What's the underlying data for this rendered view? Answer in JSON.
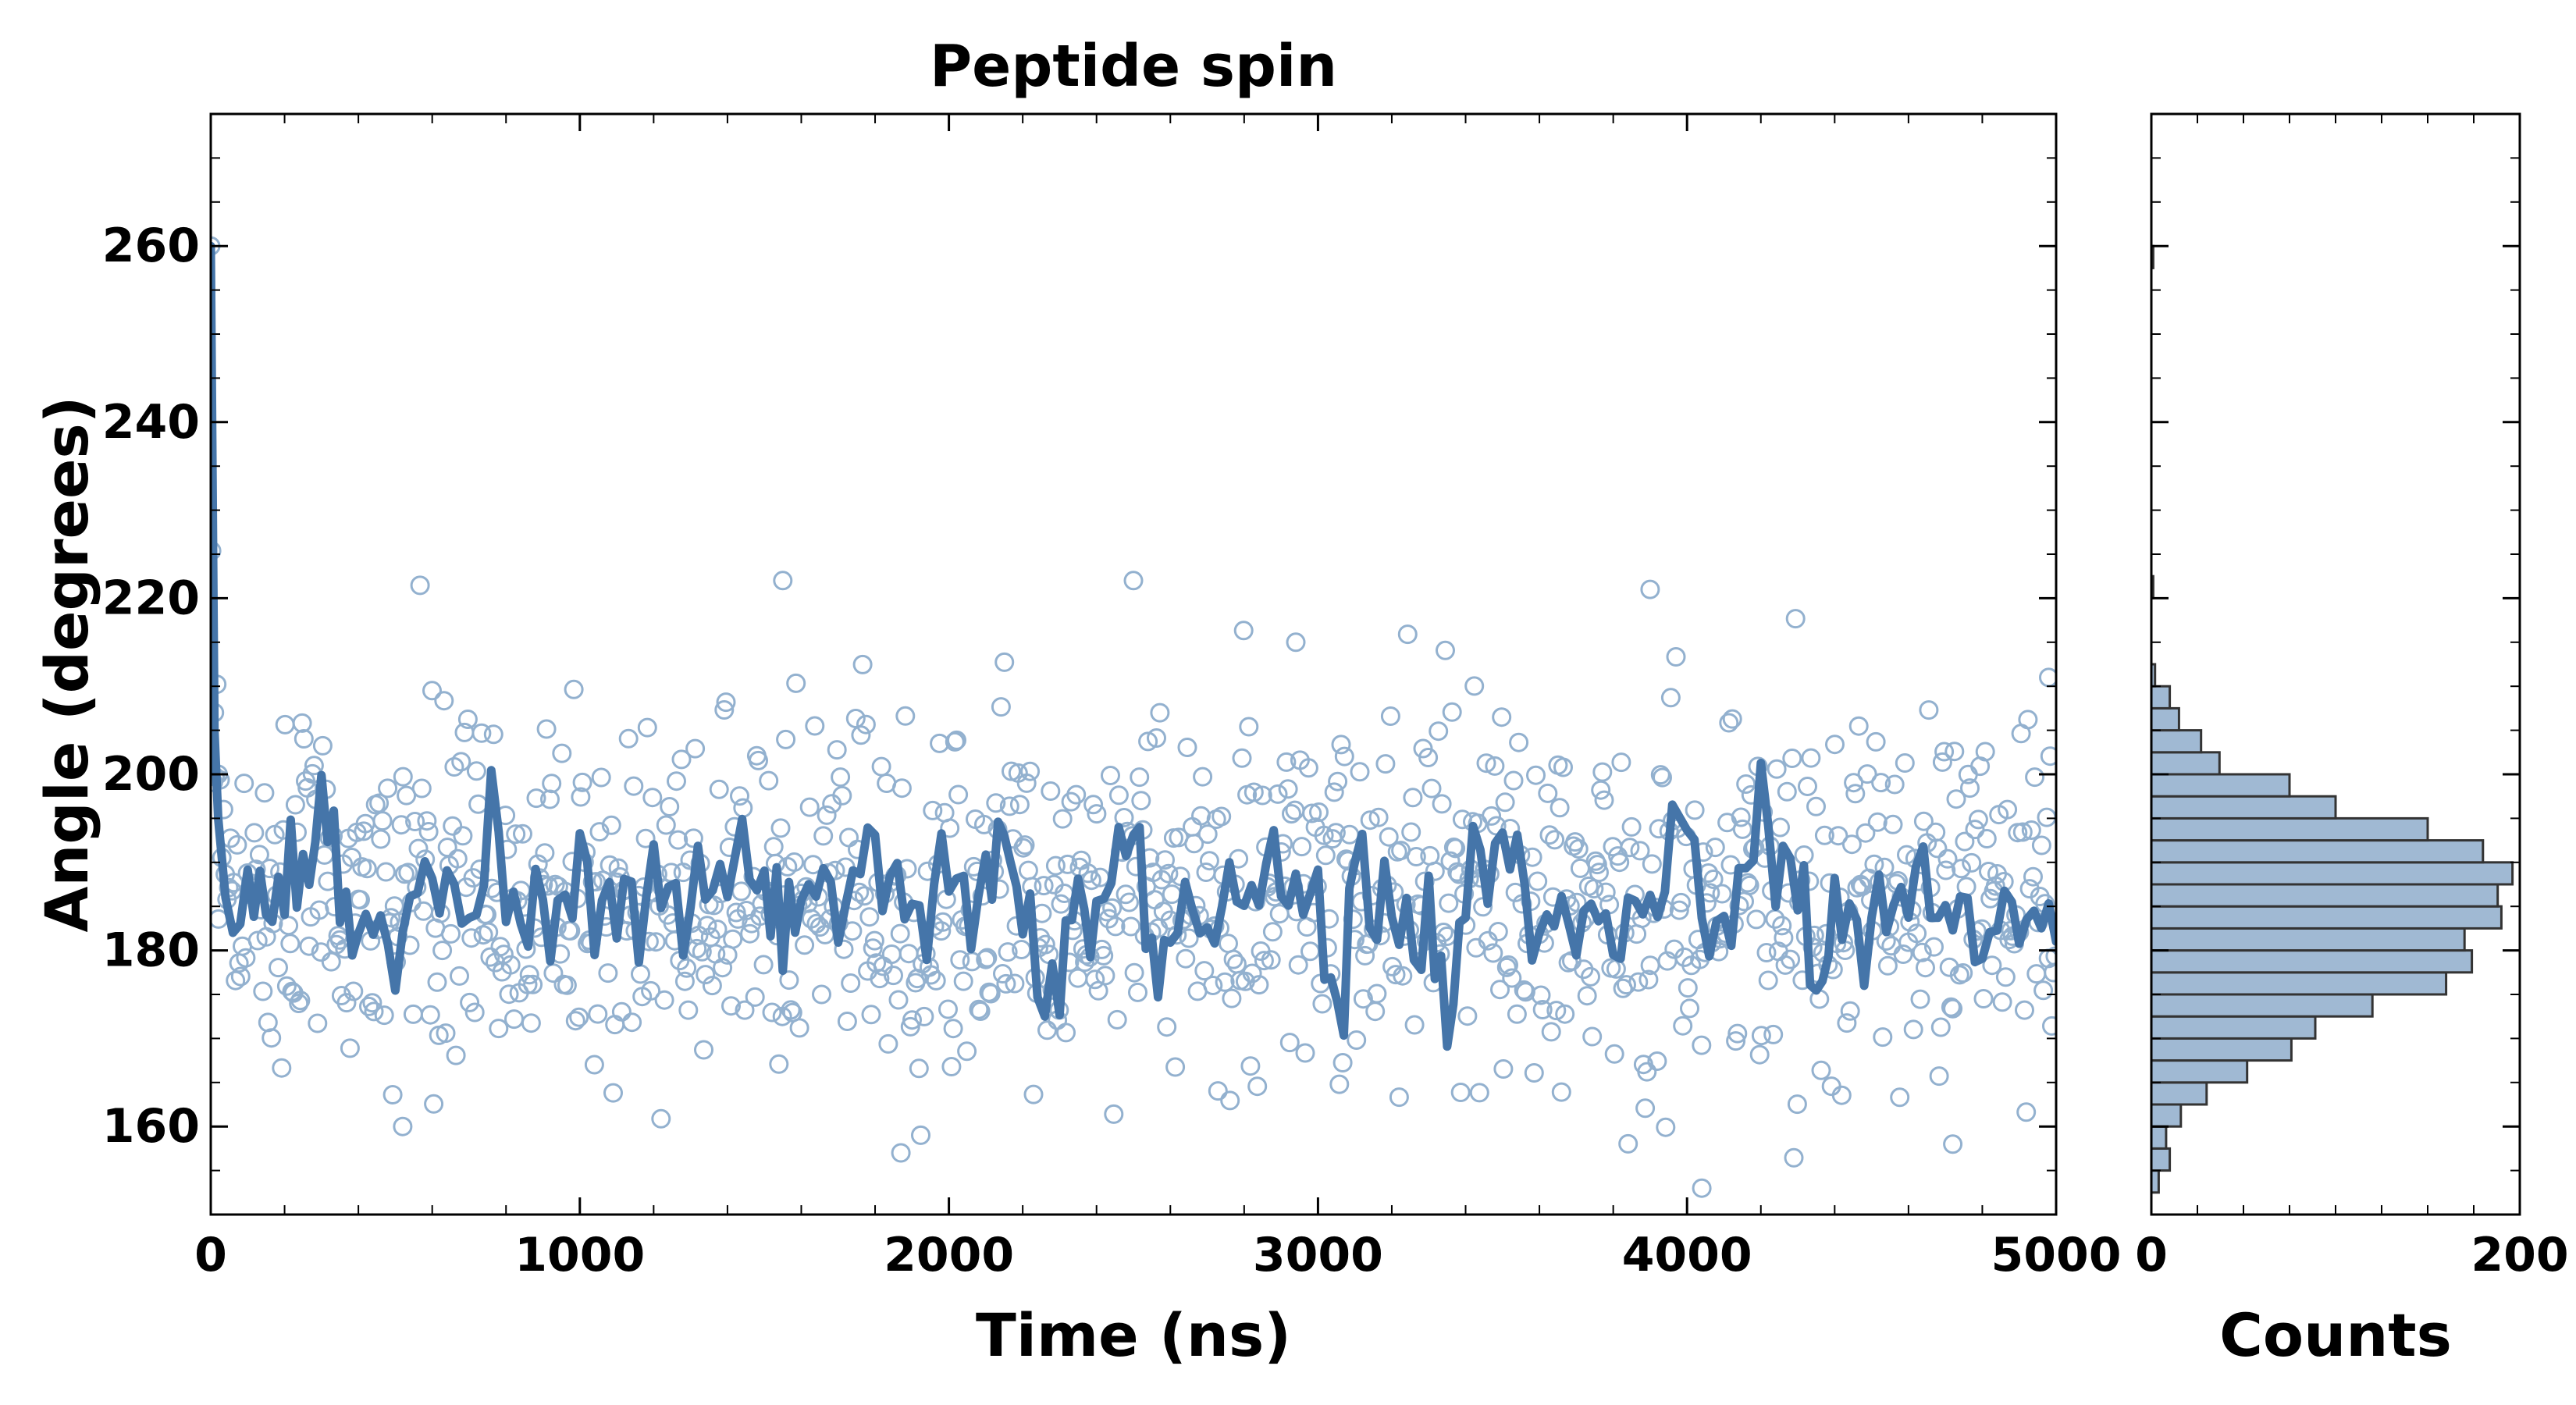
{
  "chart_data": [
    {
      "type": "scatter",
      "title": "Peptide spin",
      "xlabel": "Time (ns)",
      "ylabel": "Angle (degrees)",
      "xlim": [
        0,
        5000
      ],
      "ylim": [
        150,
        275
      ],
      "xticks": [
        0,
        1000,
        2000,
        3000,
        4000,
        5000
      ],
      "yticks": [
        160,
        180,
        200,
        220,
        240,
        260
      ],
      "grid": false,
      "colors": {
        "series": "#4575a9",
        "markers": "#93b1cf"
      },
      "series": [
        {
          "kind": "markers",
          "marker": "open-circle",
          "x_start": 0,
          "x_end": 5000,
          "count": 1080,
          "y_mean": 186,
          "y_std": 10,
          "samples": [
            {
              "x": 0,
              "y": 260
            },
            {
              "x": 10,
              "y": 207
            },
            {
              "x": 20,
              "y": 200
            },
            {
              "x": 520,
              "y": 160
            },
            {
              "x": 1550,
              "y": 222
            },
            {
              "x": 1870,
              "y": 157
            },
            {
              "x": 2500,
              "y": 222
            },
            {
              "x": 2940,
              "y": 215
            },
            {
              "x": 3900,
              "y": 221
            },
            {
              "x": 4040,
              "y": 153
            },
            {
              "x": 4720,
              "y": 158
            },
            {
              "x": 4980,
              "y": 211
            }
          ]
        },
        {
          "kind": "line",
          "x": [
            0,
            10,
            20,
            40,
            60,
            100,
            150,
            200,
            250,
            300,
            350,
            400,
            500,
            600,
            700,
            760,
            800,
            900,
            1000,
            1100,
            1200,
            1300,
            1400,
            1500,
            1550,
            1600,
            1700,
            1800,
            1900,
            2000,
            2100,
            2150,
            2200,
            2300,
            2350,
            2400,
            2500,
            2550,
            2600,
            2700,
            2800,
            2900,
            3000,
            3070,
            3100,
            3200,
            3300,
            3350,
            3400,
            3500,
            3600,
            3700,
            3800,
            3900,
            4000,
            4080,
            4100,
            4200,
            4300,
            4350,
            4400,
            4500,
            4600,
            4700,
            4800,
            4900,
            5000
          ],
          "y": [
            260,
            205,
            195,
            186,
            182,
            184,
            186,
            188,
            187,
            199,
            185,
            183,
            180,
            190,
            182,
            196,
            186,
            183,
            188,
            184,
            187,
            185,
            190,
            189,
            180,
            188,
            185,
            192,
            183,
            189,
            184,
            197,
            181,
            174,
            188,
            182,
            197,
            175,
            184,
            183,
            187,
            189,
            184,
            172,
            190,
            183,
            182,
            172,
            187,
            193,
            182,
            184,
            182,
            185,
            196,
            177,
            183,
            195,
            187,
            176,
            184,
            182,
            188,
            185,
            181,
            185,
            181
          ]
        }
      ]
    },
    {
      "type": "bar",
      "orientation": "horizontal",
      "xlabel": "Counts",
      "xlim": [
        0,
        200
      ],
      "xticks": [
        0,
        200
      ],
      "colors": {
        "bar_fill": "#a0b9d3",
        "bar_edge": "#333333"
      },
      "bins": [
        152.5,
        155,
        157.5,
        160,
        162.5,
        165,
        167.5,
        170,
        172.5,
        175,
        177.5,
        180,
        182.5,
        185,
        187.5,
        190,
        192.5,
        195,
        197.5,
        200,
        202.5,
        205,
        207.5,
        210
      ],
      "counts": [
        4,
        10,
        8,
        16,
        30,
        52,
        76,
        89,
        120,
        160,
        174,
        170,
        190,
        188,
        196,
        180,
        150,
        100,
        75,
        37,
        27,
        15,
        10
      ],
      "extra_bins": [
        {
          "y0": 210,
          "y1": 212.5,
          "count": 2
        },
        {
          "y0": 220,
          "y1": 222.5,
          "count": 1
        },
        {
          "y0": 257.5,
          "y1": 260,
          "count": 1
        }
      ]
    }
  ]
}
